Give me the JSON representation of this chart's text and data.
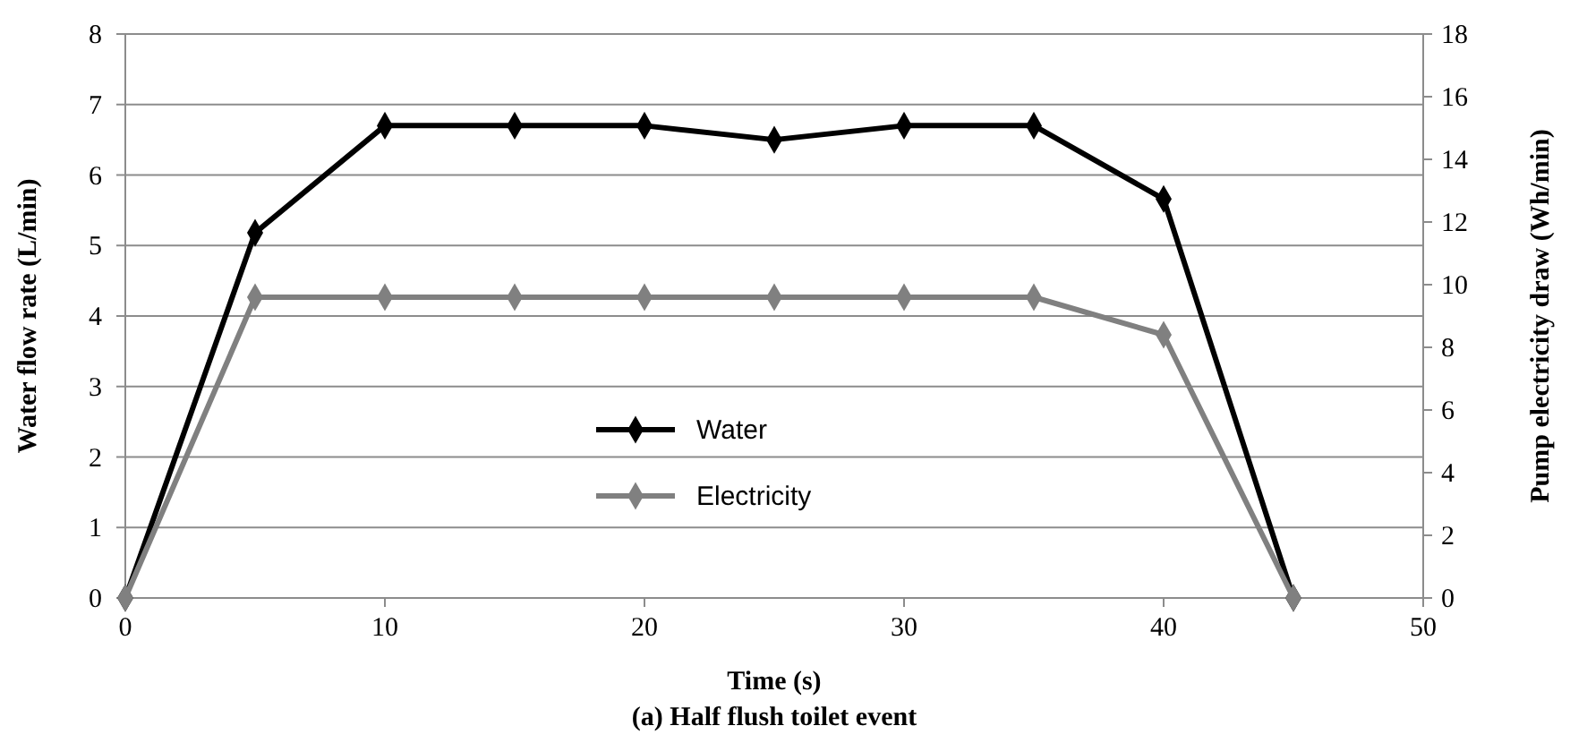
{
  "chart_data": {
    "type": "line",
    "title": "(a) Half flush toilet event",
    "xlabel": "Time (s)",
    "ylabel": "Water flow rate (L/min)",
    "y2label": "Pump electricity draw (Wh/min)",
    "x": [
      0,
      5,
      10,
      15,
      20,
      25,
      30,
      35,
      40,
      45
    ],
    "series": [
      {
        "name": "Water",
        "color": "#000000",
        "values": [
          0,
          5.18,
          6.7,
          6.7,
          6.7,
          6.5,
          6.7,
          6.7,
          5.66,
          0
        ]
      },
      {
        "name": "Electricity",
        "color": "#808080",
        "axis": "y2",
        "values": [
          0,
          9.6,
          9.6,
          9.6,
          9.6,
          9.6,
          9.6,
          9.6,
          8.4,
          0
        ]
      }
    ],
    "xlim": [
      0,
      50
    ],
    "xticks": [
      0,
      10,
      20,
      30,
      40,
      50
    ],
    "ylim": [
      0,
      8
    ],
    "yticks": [
      0,
      1,
      2,
      3,
      4,
      5,
      6,
      7,
      8
    ],
    "y2lim": [
      0,
      18
    ],
    "y2ticks": [
      0,
      2,
      4,
      6,
      8,
      10,
      12,
      14,
      16,
      18
    ],
    "grid": "y",
    "legend": "center",
    "marker": "diamond",
    "line_style": "solid"
  }
}
